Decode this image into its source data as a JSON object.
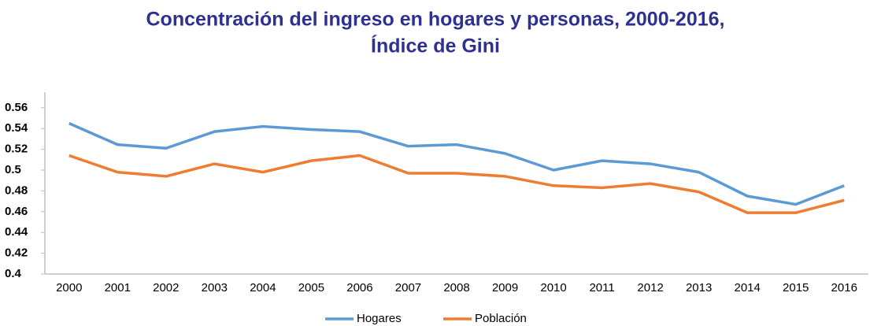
{
  "chart_data": {
    "type": "line",
    "title": "Concentración del ingreso en hogares y personas, 2000-2016,",
    "subtitle": "Índice de Gini",
    "categories": [
      "2000",
      "2001",
      "2002",
      "2003",
      "2004",
      "2005",
      "2006",
      "2007",
      "2008",
      "2009",
      "2010",
      "2011",
      "2012",
      "2013",
      "2014",
      "2015",
      "2016"
    ],
    "series": [
      {
        "name": "Hogares",
        "color": "#5b9bd5",
        "values": [
          0.545,
          0.5245,
          0.521,
          0.537,
          0.542,
          0.539,
          0.537,
          0.523,
          0.5245,
          0.516,
          0.5,
          0.509,
          0.506,
          0.498,
          0.475,
          0.467,
          0.485
        ]
      },
      {
        "name": "Población",
        "color": "#ed7d31",
        "values": [
          0.514,
          0.498,
          0.494,
          0.506,
          0.498,
          0.509,
          0.514,
          0.497,
          0.497,
          0.494,
          0.485,
          0.483,
          0.487,
          0.479,
          0.459,
          0.459,
          0.471
        ]
      }
    ],
    "ylim": [
      0.4,
      0.575
    ],
    "yticks": [
      0.4,
      0.42,
      0.44,
      0.46,
      0.48,
      0.5,
      0.52,
      0.54,
      0.56
    ],
    "grid": false,
    "legend": "bottom"
  }
}
